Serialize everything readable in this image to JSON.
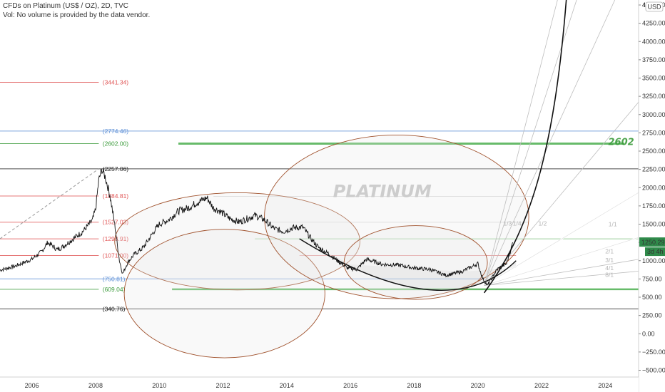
{
  "header": {
    "title": "CFDs on Platinum (US$ / OZ), 2D, TVC",
    "subtitle": "Vol: No volume is provided by the data vendor."
  },
  "chart_data": {
    "type": "line",
    "symbol": "PLATINUM",
    "currency": "USD",
    "ylim": [
      -600,
      4650
    ],
    "xlim": [
      2005.0,
      2027.6
    ],
    "y_ticks": [
      4500,
      4250,
      4000,
      3750,
      3500,
      3250,
      3000,
      2750,
      2500,
      2250,
      2000,
      1750,
      1500,
      1250,
      1000,
      750,
      500,
      250,
      0,
      -250,
      -500
    ],
    "y_tick_labels": [
      "4500.00",
      "4250.00",
      "4000.00",
      "3750.00",
      "3500.00",
      "3250.00",
      "3000.00",
      "2750.00",
      "2500.00",
      "2250.00",
      "2000.00",
      "1750.00",
      "1500.00",
      "1250.00",
      "1000.00",
      "750.00",
      "500.00",
      "250.00",
      "0.00",
      "−250.00",
      "−500.00"
    ],
    "top_axis_label": "4",
    "x_ticks": [
      2006,
      2008,
      2010,
      2012,
      2014,
      2016,
      2018,
      2020,
      2022,
      2024
    ],
    "x_tick_labels": [
      "2006",
      "2008",
      "2010",
      "2012",
      "2014",
      "2016",
      "2018",
      "2020",
      "2022",
      "2024"
    ],
    "last_price": {
      "value": 1250.29,
      "label": "1250.29",
      "countdown": "3d 4h"
    },
    "series": [
      {
        "x": [
          2005.0,
          2005.5,
          2006.0,
          2006.3,
          2006.5,
          2006.8,
          2007.0,
          2007.3,
          2007.6,
          2007.9,
          2008.0,
          2008.1,
          2008.2,
          2008.3,
          2008.45,
          2008.6,
          2008.75,
          2008.85,
          2009.0,
          2009.2,
          2009.5,
          2009.8,
          2010.0,
          2010.3,
          2010.6,
          2010.9,
          2011.2,
          2011.5,
          2011.7,
          2011.9,
          2012.2,
          2012.5,
          2012.8,
          2013.0,
          2013.3,
          2013.6,
          2013.9,
          2014.2,
          2014.5,
          2014.8,
          2015.0,
          2015.3,
          2015.6,
          2015.9,
          2016.2,
          2016.5,
          2016.8,
          2017.0,
          2017.5,
          2018.0,
          2018.5,
          2019.0,
          2019.5,
          2020.0,
          2020.15,
          2020.3,
          2020.6,
          2020.9,
          2021.1
        ],
        "y": [
          870,
          930,
          1020,
          1120,
          1250,
          1150,
          1200,
          1300,
          1400,
          1550,
          1700,
          2100,
          2250,
          2150,
          1900,
          1500,
          1000,
          820,
          970,
          1080,
          1180,
          1380,
          1500,
          1560,
          1680,
          1720,
          1800,
          1860,
          1720,
          1680,
          1580,
          1530,
          1580,
          1620,
          1560,
          1440,
          1400,
          1450,
          1460,
          1280,
          1180,
          1100,
          1000,
          900,
          880,
          1020,
          980,
          950,
          940,
          900,
          880,
          800,
          850,
          960,
          760,
          660,
          880,
          960,
          1250
        ]
      }
    ],
    "levels": [
      {
        "label": "(3441.34)",
        "value": 3441.34,
        "color": "#e05555"
      },
      {
        "label": "(2774.46)",
        "value": 2774.46,
        "color": "#5c8fd6"
      },
      {
        "label": "(2602.00)",
        "value": 2602.0,
        "color": "#3a9a3a"
      },
      {
        "label": "(2257.06)",
        "value": 2257.06,
        "color": "#222222"
      },
      {
        "label": "(1884.81)",
        "value": 1884.81,
        "color": "#e05555"
      },
      {
        "label": "(1527.03)",
        "value": 1527.03,
        "color": "#e05555"
      },
      {
        "label": "(1298.91)",
        "value": 1298.91,
        "color": "#e05555"
      },
      {
        "label": "(1071.00)",
        "value": 1071.0,
        "color": "#e05555"
      },
      {
        "label": "(750.81)",
        "value": 750.81,
        "color": "#5c8fd6"
      },
      {
        "label": "(609.04)",
        "value": 609.04,
        "color": "#3a9a3a"
      },
      {
        "label": "(340.76)",
        "value": 340.76,
        "color": "#222222"
      }
    ],
    "annotations": [
      {
        "text": "2602",
        "x": 2024.5,
        "y": 2585,
        "color": "#3a9a3a"
      },
      {
        "text": "PLATINUM",
        "x": 2017.0,
        "y": 1870,
        "color": "#c8c8c8"
      }
    ],
    "fan_labels": [
      "1/3",
      "1/4",
      "1/2",
      "1/1",
      "2/1",
      "3/1",
      "4/1",
      "8/1"
    ],
    "grid": false,
    "colors": {
      "price": "#111111",
      "ellipse": "#a0522d",
      "fan": "#bdbdbd",
      "axis_bg": "#ffffff",
      "last_price_bg": "#2f8a4a"
    }
  }
}
